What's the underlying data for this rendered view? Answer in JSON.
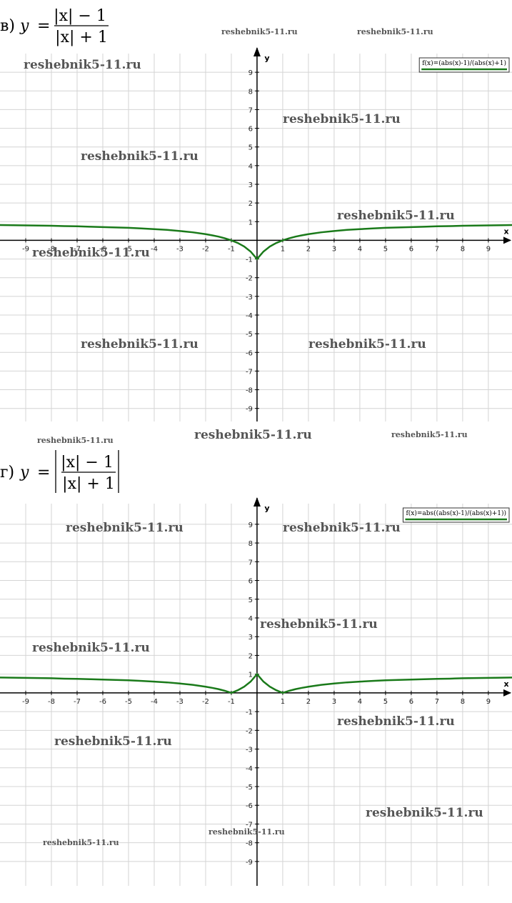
{
  "chart_data": [
    {
      "type": "line",
      "title": {
        "label": "в)",
        "lhs": "y",
        "numerator": "|x| − 1",
        "denominator": "|x| + 1"
      },
      "x_label": "x",
      "y_label": "y",
      "x": [
        -10,
        -9.5,
        -9,
        -8.5,
        -8,
        -7.5,
        -7,
        -6.5,
        -6,
        -5.5,
        -5,
        -4.5,
        -4,
        -3.5,
        -3,
        -2.5,
        -2,
        -1.75,
        -1.5,
        -1.25,
        -1,
        -0.75,
        -0.5,
        -0.25,
        0,
        0.25,
        0.5,
        0.75,
        1,
        1.25,
        1.5,
        1.75,
        2,
        2.5,
        3,
        3.5,
        4,
        4.5,
        5,
        5.5,
        6,
        6.5,
        7,
        7.5,
        8,
        8.5,
        9,
        9.5,
        10
      ],
      "series": [
        {
          "name": "f(x)=(abs(x)-1)/(abs(x)+1)",
          "color": "#1a7a1a",
          "values": [
            0.82,
            0.81,
            0.8,
            0.79,
            0.78,
            0.76,
            0.75,
            0.73,
            0.71,
            0.69,
            0.67,
            0.64,
            0.6,
            0.56,
            0.5,
            0.43,
            0.33,
            0.27,
            0.2,
            0.11,
            0,
            -0.14,
            -0.33,
            -0.6,
            -1,
            -0.6,
            -0.33,
            -0.14,
            0,
            0.11,
            0.2,
            0.27,
            0.33,
            0.43,
            0.5,
            0.56,
            0.6,
            0.64,
            0.67,
            0.69,
            0.71,
            0.73,
            0.75,
            0.76,
            0.78,
            0.79,
            0.8,
            0.81,
            0.82
          ]
        }
      ],
      "xlim": [
        -10,
        9.92
      ],
      "ylim": [
        -9.7,
        10
      ],
      "xticks": [
        -9,
        -8,
        -7,
        -6,
        -5,
        -4,
        -3,
        -2,
        -1,
        1,
        2,
        3,
        4,
        5,
        6,
        7,
        8,
        9
      ],
      "yticks": [
        -9,
        -8,
        -7,
        -6,
        -5,
        -4,
        -3,
        -2,
        -1,
        1,
        2,
        3,
        4,
        5,
        6,
        7,
        8,
        9
      ],
      "grid": true,
      "legend": "top-right",
      "annotations": [
        "reshebnik5-11.ru",
        "reshebnik5-11.ru",
        "reshebnik5-11.ru",
        "reshebnik5-11.ru",
        "reshebnik5-11.ru",
        "reshebnik5-11.ru",
        "reshebnik5-11.ru",
        "reshebnik5-11.ru",
        "reshebnik5-11.ru",
        "reshebnik5-11.ru",
        "reshebnik5-11.ru",
        "reshebnik5-11.ru"
      ]
    },
    {
      "type": "line",
      "title": {
        "label": "г)",
        "lhs": "y",
        "numerator": "|x| − 1",
        "denominator": "|x| + 1"
      },
      "x_label": "x",
      "y_label": "y",
      "x": [
        -10,
        -9.5,
        -9,
        -8.5,
        -8,
        -7.5,
        -7,
        -6.5,
        -6,
        -5.5,
        -5,
        -4.5,
        -4,
        -3.5,
        -3,
        -2.5,
        -2,
        -1.75,
        -1.5,
        -1.25,
        -1,
        -0.75,
        -0.5,
        -0.25,
        0,
        0.25,
        0.5,
        0.75,
        1,
        1.25,
        1.5,
        1.75,
        2,
        2.5,
        3,
        3.5,
        4,
        4.5,
        5,
        5.5,
        6,
        6.5,
        7,
        7.5,
        8,
        8.5,
        9,
        9.5,
        10
      ],
      "series": [
        {
          "name": "f(x)=abs((abs(x)-1)/(abs(x)+1))",
          "color": "#1a7a1a",
          "values": [
            0.82,
            0.81,
            0.8,
            0.79,
            0.78,
            0.76,
            0.75,
            0.73,
            0.71,
            0.69,
            0.67,
            0.64,
            0.6,
            0.56,
            0.5,
            0.43,
            0.33,
            0.27,
            0.2,
            0.11,
            0,
            0.14,
            0.33,
            0.6,
            1,
            0.6,
            0.33,
            0.14,
            0,
            0.11,
            0.2,
            0.27,
            0.33,
            0.43,
            0.5,
            0.56,
            0.6,
            0.64,
            0.67,
            0.69,
            0.71,
            0.73,
            0.75,
            0.76,
            0.78,
            0.79,
            0.8,
            0.81,
            0.82
          ]
        }
      ],
      "xlim": [
        -10,
        9.92
      ],
      "ylim": [
        -10.3,
        10.1
      ],
      "xticks": [
        -9,
        -8,
        -7,
        -6,
        -5,
        -4,
        -3,
        -2,
        -1,
        1,
        2,
        3,
        4,
        5,
        6,
        7,
        8,
        9
      ],
      "yticks": [
        -9,
        -8,
        -7,
        -6,
        -5,
        -4,
        -3,
        -2,
        -1,
        1,
        2,
        3,
        4,
        5,
        6,
        7,
        8,
        9
      ],
      "grid": true,
      "legend": "top-right",
      "annotations": [
        "reshebnik5-11.ru",
        "reshebnik5-11.ru",
        "reshebnik5-11.ru",
        "reshebnik5-11.ru",
        "reshebnik5-11.ru",
        "reshebnik5-11.ru",
        "reshebnik5-11.ru",
        "reshebnik5-11.ru",
        "reshebnik5-11.ru"
      ]
    }
  ]
}
